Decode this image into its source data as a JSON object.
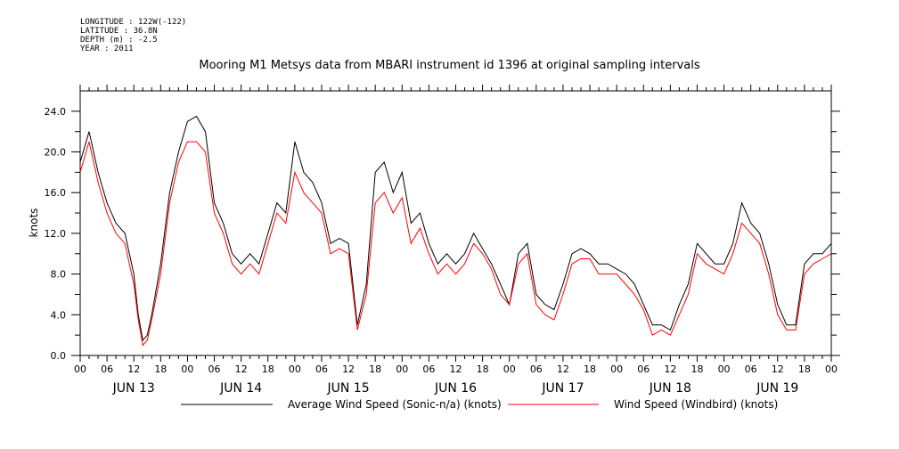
{
  "header": {
    "meta_lines": [
      "LONGITUDE : 122W(-122)",
      "LATITUDE : 36.8N",
      "DEPTH (m) : -2.5",
      "YEAR : 2011"
    ],
    "title": "Mooring M1 Metsys data from MBARI instrument id 1396 at original sampling intervals"
  },
  "chart_data": {
    "type": "line",
    "title": "Mooring M1 Metsys data from MBARI instrument id 1396 at original sampling intervals",
    "xlabel": "",
    "ylabel": "knots",
    "ylim": [
      0,
      26
    ],
    "xlim_hours": [
      0,
      168
    ],
    "y_ticks": [
      "0.0",
      "4.0",
      "8.0",
      "12.0",
      "16.0",
      "20.0",
      "24.0"
    ],
    "x_hour_ticks": [
      "00",
      "06",
      "12",
      "18",
      "00",
      "06",
      "12",
      "18",
      "00",
      "06",
      "12",
      "18",
      "00",
      "06",
      "12",
      "18",
      "00",
      "06",
      "12",
      "18",
      "00",
      "06",
      "12",
      "18",
      "00",
      "06",
      "12",
      "18",
      "00"
    ],
    "x_day_labels": [
      "JUN 13",
      "JUN 14",
      "JUN 15",
      "JUN 16",
      "JUN 17",
      "JUN 18",
      "JUN 19"
    ],
    "x": [
      0,
      2,
      4,
      6,
      8,
      10,
      12,
      13,
      14,
      15,
      16,
      18,
      20,
      22,
      24,
      26,
      28,
      30,
      32,
      34,
      36,
      38,
      40,
      42,
      44,
      46,
      48,
      50,
      52,
      54,
      56,
      58,
      60,
      62,
      64,
      66,
      68,
      70,
      72,
      74,
      76,
      78,
      80,
      82,
      84,
      86,
      88,
      90,
      92,
      94,
      96,
      98,
      100,
      102,
      104,
      106,
      108,
      110,
      112,
      114,
      116,
      118,
      120,
      122,
      124,
      126,
      128,
      130,
      132,
      134,
      136,
      138,
      140,
      142,
      144,
      146,
      148,
      150,
      152,
      154,
      156,
      158,
      160,
      162,
      164,
      166,
      168
    ],
    "series": [
      {
        "name": "Average Wind Speed (Sonic-n/a) (knots)",
        "color": "#000000",
        "values": [
          19,
          22,
          18,
          15,
          13,
          12,
          8,
          4,
          1.5,
          2,
          4,
          9,
          16,
          20,
          23,
          23.5,
          22,
          15,
          13,
          10,
          9,
          10,
          9,
          12,
          15,
          14,
          21,
          18,
          17,
          15,
          11,
          11.5,
          11,
          3,
          7,
          18,
          19,
          16,
          18,
          13,
          14,
          11,
          9,
          10,
          9,
          10,
          12,
          10.5,
          9,
          7,
          5,
          10,
          11,
          6,
          5,
          4.5,
          7,
          10,
          10.5,
          10,
          9,
          9,
          8.5,
          8,
          7,
          5,
          3,
          3,
          2.5,
          5,
          7,
          11,
          10,
          9,
          9,
          11,
          15,
          13,
          12,
          9,
          5,
          3,
          3,
          9,
          10,
          10,
          11
        ]
      },
      {
        "name": "Wind Speed (Windbird) (knots)",
        "color": "#ff0000",
        "values": [
          18,
          21,
          17,
          14,
          12,
          11,
          7,
          3.5,
          1,
          1.5,
          3.5,
          8,
          15,
          19,
          21,
          21,
          20,
          14,
          12,
          9,
          8,
          9,
          8,
          11,
          14,
          13,
          18,
          16,
          15,
          14,
          10,
          10.5,
          10,
          2.5,
          6,
          15,
          16,
          14,
          15.5,
          11,
          12.5,
          10,
          8,
          9,
          8,
          9,
          11,
          10,
          8.5,
          6,
          5,
          9,
          10,
          5,
          4,
          3.5,
          6,
          9,
          9.5,
          9.5,
          8,
          8,
          8,
          7,
          6,
          4.5,
          2,
          2.5,
          2,
          4,
          6,
          10,
          9,
          8.5,
          8,
          10,
          13,
          12,
          11,
          8,
          4,
          2.5,
          2.5,
          8,
          9,
          9.5,
          10
        ]
      }
    ],
    "legend_placement": "bottom"
  },
  "colors": {
    "series1": "#000000",
    "series2": "#ff0000"
  }
}
